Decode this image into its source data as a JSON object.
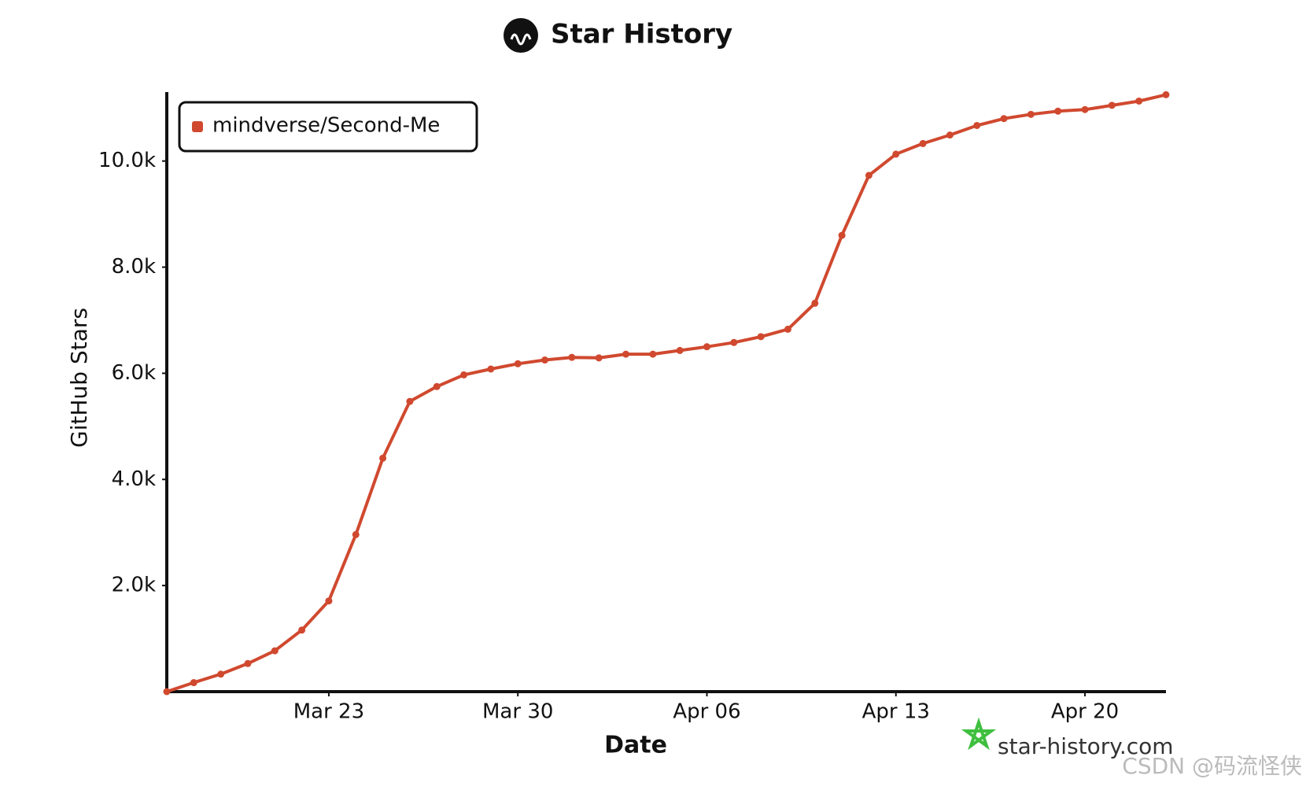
{
  "chart_data": {
    "type": "line",
    "title": "Star History",
    "x_label": "Date",
    "y_label": "GitHub Stars",
    "x": [
      "Mar 17",
      "Mar 18",
      "Mar 19",
      "Mar 20",
      "Mar 21",
      "Mar 22",
      "Mar 23",
      "Mar 24",
      "Mar 25",
      "Mar 26",
      "Mar 27",
      "Mar 28",
      "Mar 29",
      "Mar 30",
      "Mar 31",
      "Apr 01",
      "Apr 02",
      "Apr 03",
      "Apr 04",
      "Apr 05",
      "Apr 06",
      "Apr 07",
      "Apr 08",
      "Apr 09",
      "Apr 10",
      "Apr 11",
      "Apr 12",
      "Apr 13",
      "Apr 14",
      "Apr 15",
      "Apr 16",
      "Apr 17",
      "Apr 18",
      "Apr 19",
      "Apr 20",
      "Apr 21",
      "Apr 22",
      "Apr 23"
    ],
    "series": [
      {
        "name": "mindverse/Second-Me",
        "color": "#d0492f",
        "values": [
          0,
          170,
          330,
          530,
          770,
          1160,
          1710,
          2960,
          4400,
          5470,
          5750,
          5970,
          6080,
          6180,
          6250,
          6300,
          6290,
          6360,
          6360,
          6430,
          6500,
          6580,
          6690,
          6830,
          7320,
          8600,
          9730,
          10130,
          10330,
          10490,
          10670,
          10800,
          10880,
          10940,
          10970,
          11050,
          11130,
          11250
        ]
      }
    ],
    "xlim": [
      "Mar 17",
      "Apr 23"
    ],
    "xticks": [
      "Mar 23",
      "Mar 30",
      "Apr 06",
      "Apr 13",
      "Apr 20"
    ],
    "ylim": [
      0,
      11300
    ],
    "yticks": [
      {
        "value": 2000,
        "label": "2.0k"
      },
      {
        "value": 4000,
        "label": "4.0k"
      },
      {
        "value": 6000,
        "label": "6.0k"
      },
      {
        "value": 8000,
        "label": "8.0k"
      },
      {
        "value": 10000,
        "label": "10.0k"
      }
    ],
    "legend": "top-left",
    "credit": "star-history.com",
    "watermark": "CSDN @码流怪侠"
  }
}
